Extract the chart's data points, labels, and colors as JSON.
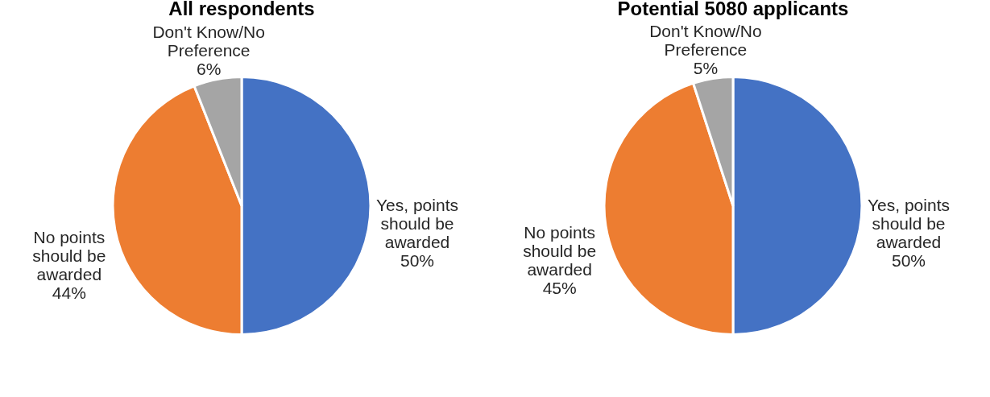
{
  "chart_data": [
    {
      "type": "pie",
      "title": "All respondents",
      "categories": [
        "Yes, points should be awarded",
        "No points should be awarded",
        "Don't Know/No Preference"
      ],
      "values": [
        50,
        44,
        6
      ],
      "colors": [
        "#4472c4",
        "#ed7d31",
        "#a5a5a5"
      ],
      "value_labels": [
        "50%",
        "44%",
        "6%"
      ]
    },
    {
      "type": "pie",
      "title": "Potential 5080 applicants",
      "categories": [
        "Yes, points should be awarded",
        "No points should be awarded",
        "Don't Know/No Preference"
      ],
      "values": [
        50,
        45,
        5
      ],
      "colors": [
        "#4472c4",
        "#ed7d31",
        "#a5a5a5"
      ],
      "value_labels": [
        "50%",
        "45%",
        "5%"
      ]
    }
  ]
}
